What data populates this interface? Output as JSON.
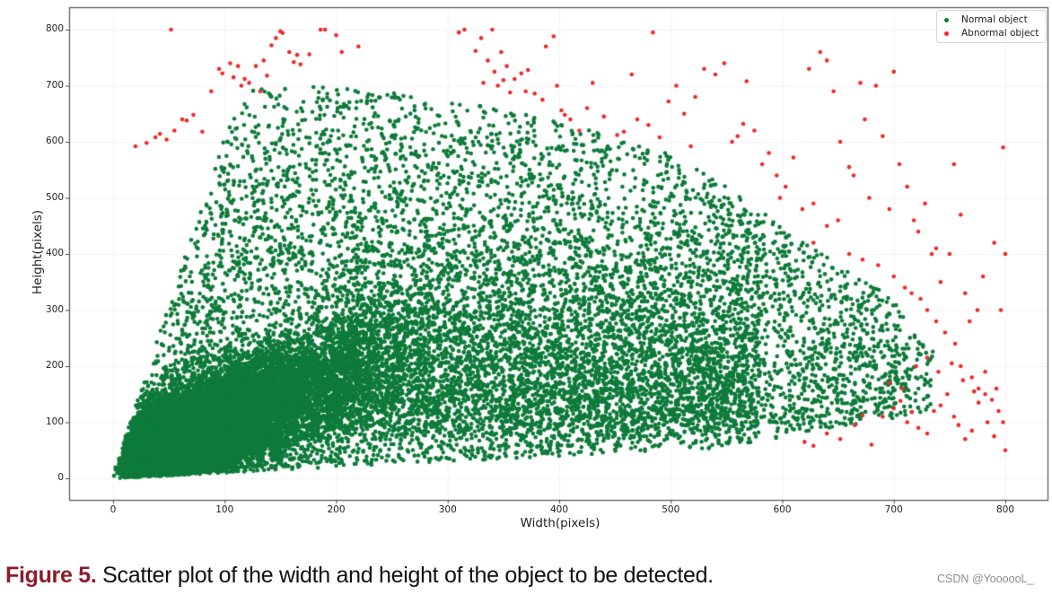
{
  "figure": {
    "caption_label": "Figure 5.",
    "caption_text": " Scatter plot of the width and height of the object to be detected.",
    "watermark": "CSDN @YoooooL_"
  },
  "colors": {
    "normal": "#0e7b3a",
    "abnormal": "#ef2a2a",
    "axis": "#555555",
    "caption_label": "#8c1d2b"
  },
  "chart_data": {
    "type": "scatter",
    "title": "",
    "xlabel": "Width(pixels)",
    "ylabel": "Height(pixels)",
    "xlim": [
      -40,
      837
    ],
    "ylim": [
      -40,
      840
    ],
    "xticks": [
      0,
      100,
      200,
      300,
      400,
      500,
      600,
      700,
      800
    ],
    "yticks": [
      0,
      100,
      200,
      300,
      400,
      500,
      600,
      700,
      800
    ],
    "grid": true,
    "legend_position": "upper right",
    "legend": [
      "Normal object",
      "Abnormal object"
    ],
    "series": [
      {
        "name": "Normal object",
        "color": "#0e7b3a",
        "description": "Tens of thousands of points; extremely dense wedge from origin (bounded below by y≈0.1x, left by y≈6x) concentrated at width 0–250, height 0–250 along y≈0.8x; sparse coverage up to an envelope y_max(x).",
        "density_model": {
          "dense_core_count": 14000,
          "sparse_count": 7000,
          "upper_envelope": [
            [
              20,
              560
            ],
            [
              50,
              590
            ],
            [
              100,
              690
            ],
            [
              170,
              700
            ],
            [
              250,
              690
            ],
            [
              350,
              660
            ],
            [
              450,
              610
            ],
            [
              500,
              580
            ],
            [
              550,
              520
            ],
            [
              600,
              450
            ],
            [
              650,
              380
            ],
            [
              700,
              320
            ],
            [
              720,
              250
            ],
            [
              760,
              200
            ],
            [
              800,
              180
            ]
          ],
          "lower_bound_slope": 0.1,
          "left_bound_slope": 6,
          "max_width": 735
        }
      },
      {
        "name": "Abnormal object",
        "color": "#ef2a2a",
        "points": [
          [
            20,
            592
          ],
          [
            30,
            598
          ],
          [
            38,
            608
          ],
          [
            42,
            614
          ],
          [
            48,
            604
          ],
          [
            52,
            800
          ],
          [
            55,
            620
          ],
          [
            62,
            640
          ],
          [
            66,
            638
          ],
          [
            72,
            648
          ],
          [
            80,
            618
          ],
          [
            88,
            690
          ],
          [
            95,
            730
          ],
          [
            98,
            722
          ],
          [
            105,
            740
          ],
          [
            108,
            715
          ],
          [
            112,
            735
          ],
          [
            115,
            700
          ],
          [
            118,
            712
          ],
          [
            122,
            705
          ],
          [
            128,
            735
          ],
          [
            132,
            690
          ],
          [
            135,
            745
          ],
          [
            138,
            718
          ],
          [
            142,
            772
          ],
          [
            146,
            785
          ],
          [
            150,
            797
          ],
          [
            152,
            794
          ],
          [
            158,
            760
          ],
          [
            162,
            742
          ],
          [
            165,
            755
          ],
          [
            168,
            738
          ],
          [
            176,
            756
          ],
          [
            186,
            800
          ],
          [
            190,
            800
          ],
          [
            200,
            790
          ],
          [
            205,
            760
          ],
          [
            220,
            770
          ],
          [
            310,
            795
          ],
          [
            315,
            800
          ],
          [
            325,
            762
          ],
          [
            330,
            785
          ],
          [
            332,
            705
          ],
          [
            336,
            745
          ],
          [
            340,
            800
          ],
          [
            342,
            725
          ],
          [
            345,
            700
          ],
          [
            348,
            760
          ],
          [
            350,
            710
          ],
          [
            353,
            735
          ],
          [
            356,
            688
          ],
          [
            360,
            712
          ],
          [
            366,
            722
          ],
          [
            370,
            690
          ],
          [
            372,
            728
          ],
          [
            378,
            686
          ],
          [
            385,
            675
          ],
          [
            388,
            770
          ],
          [
            395,
            788
          ],
          [
            398,
            700
          ],
          [
            402,
            656
          ],
          [
            405,
            648
          ],
          [
            410,
            640
          ],
          [
            418,
            620
          ],
          [
            425,
            660
          ],
          [
            430,
            705
          ],
          [
            440,
            645
          ],
          [
            452,
            612
          ],
          [
            458,
            618
          ],
          [
            465,
            720
          ],
          [
            470,
            640
          ],
          [
            480,
            630
          ],
          [
            484,
            795
          ],
          [
            490,
            608
          ],
          [
            498,
            672
          ],
          [
            505,
            700
          ],
          [
            512,
            650
          ],
          [
            518,
            592
          ],
          [
            522,
            680
          ],
          [
            530,
            730
          ],
          [
            540,
            720
          ],
          [
            548,
            740
          ],
          [
            555,
            600
          ],
          [
            560,
            610
          ],
          [
            565,
            632
          ],
          [
            568,
            708
          ],
          [
            575,
            620
          ],
          [
            582,
            560
          ],
          [
            588,
            580
          ],
          [
            595,
            540
          ],
          [
            598,
            500
          ],
          [
            603,
            520
          ],
          [
            610,
            572
          ],
          [
            618,
            480
          ],
          [
            624,
            730
          ],
          [
            628,
            490
          ],
          [
            634,
            760
          ],
          [
            640,
            745
          ],
          [
            646,
            690
          ],
          [
            652,
            600
          ],
          [
            660,
            555
          ],
          [
            664,
            540
          ],
          [
            670,
            705
          ],
          [
            674,
            640
          ],
          [
            678,
            500
          ],
          [
            684,
            700
          ],
          [
            690,
            610
          ],
          [
            696,
            480
          ],
          [
            700,
            725
          ],
          [
            705,
            560
          ],
          [
            712,
            520
          ],
          [
            718,
            460
          ],
          [
            722,
            440
          ],
          [
            728,
            490
          ],
          [
            734,
            400
          ],
          [
            738,
            410
          ],
          [
            742,
            350
          ],
          [
            750,
            400
          ],
          [
            754,
            560
          ],
          [
            760,
            470
          ],
          [
            764,
            330
          ],
          [
            768,
            280
          ],
          [
            775,
            300
          ],
          [
            780,
            360
          ],
          [
            790,
            420
          ],
          [
            796,
            300
          ],
          [
            798,
            590
          ],
          [
            800,
            400
          ],
          [
            628,
            420
          ],
          [
            640,
            450
          ],
          [
            650,
            460
          ],
          [
            660,
            400
          ],
          [
            672,
            390
          ],
          [
            686,
            380
          ],
          [
            700,
            360
          ],
          [
            710,
            340
          ],
          [
            716,
            330
          ],
          [
            724,
            320
          ],
          [
            730,
            300
          ],
          [
            738,
            280
          ],
          [
            746,
            260
          ],
          [
            755,
            240
          ],
          [
            760,
            200
          ],
          [
            770,
            180
          ],
          [
            776,
            160
          ],
          [
            782,
            150
          ],
          [
            788,
            140
          ],
          [
            794,
            120
          ],
          [
            798,
            100
          ],
          [
            800,
            50
          ],
          [
            620,
            65
          ],
          [
            628,
            58
          ],
          [
            640,
            80
          ],
          [
            652,
            70
          ],
          [
            665,
            95
          ],
          [
            672,
            112
          ],
          [
            680,
            60
          ],
          [
            690,
            110
          ],
          [
            700,
            125
          ],
          [
            706,
            138
          ],
          [
            712,
            100
          ],
          [
            716,
            118
          ],
          [
            722,
            90
          ],
          [
            730,
            80
          ],
          [
            736,
            120
          ],
          [
            742,
            130
          ],
          [
            748,
            150
          ],
          [
            754,
            110
          ],
          [
            758,
            95
          ],
          [
            764,
            70
          ],
          [
            770,
            85
          ],
          [
            776,
            135
          ],
          [
            784,
            100
          ],
          [
            790,
            75
          ],
          [
            696,
            170
          ],
          [
            708,
            160
          ],
          [
            720,
            200
          ],
          [
            730,
            215
          ],
          [
            740,
            190
          ],
          [
            752,
            205
          ],
          [
            762,
            175
          ],
          [
            772,
            155
          ],
          [
            782,
            190
          ],
          [
            792,
            160
          ]
        ]
      }
    ]
  }
}
